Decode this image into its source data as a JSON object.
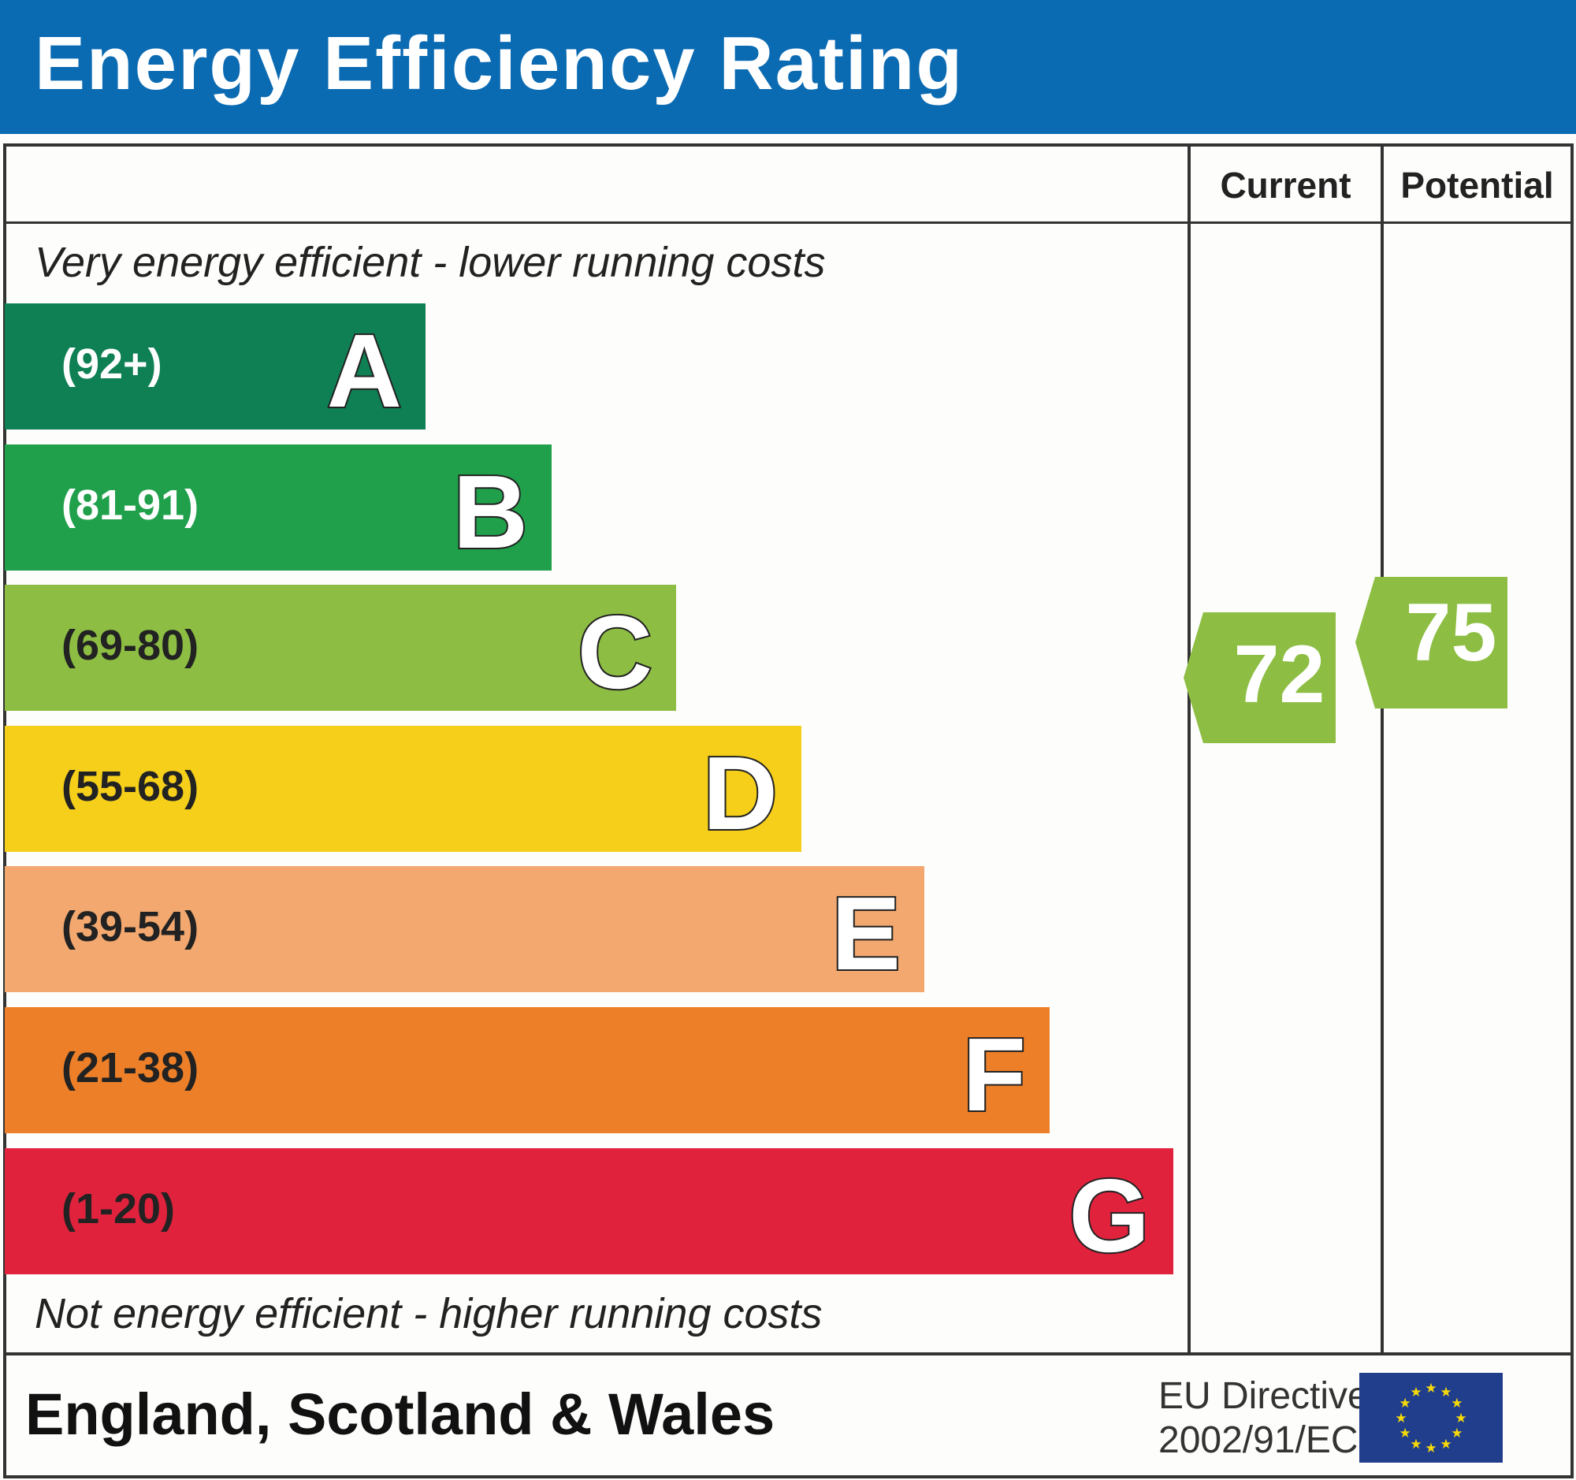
{
  "title": "Energy Efficiency Rating",
  "columns": {
    "current": "Current",
    "potential": "Potential"
  },
  "top_note": "Very energy efficient - lower running costs",
  "bottom_note": "Not energy efficient - higher running costs",
  "region": "England, Scotland & Wales",
  "directive": {
    "line1": "EU Directive",
    "line2": "2002/91/EC"
  },
  "chart_data": {
    "type": "bar",
    "categories": [
      "A",
      "B",
      "C",
      "D",
      "E",
      "F",
      "G"
    ],
    "bands": [
      {
        "letter": "A",
        "range": "(92+)",
        "color": "#0f7f54"
      },
      {
        "letter": "B",
        "range": "(81-91)",
        "color": "#20a04b"
      },
      {
        "letter": "C",
        "range": "(69-80)",
        "color": "#8dbe43"
      },
      {
        "letter": "D",
        "range": "(55-68)",
        "color": "#f5cf1a"
      },
      {
        "letter": "E",
        "range": "(39-54)",
        "color": "#f2a86f"
      },
      {
        "letter": "F",
        "range": "(21-38)",
        "color": "#ec7f28"
      },
      {
        "letter": "G",
        "range": "(1-20)",
        "color": "#e0223d"
      }
    ],
    "current": {
      "value": 72,
      "band": "C",
      "color": "#8dbe43"
    },
    "potential": {
      "value": 75,
      "band": "C",
      "color": "#8dbe43"
    }
  }
}
